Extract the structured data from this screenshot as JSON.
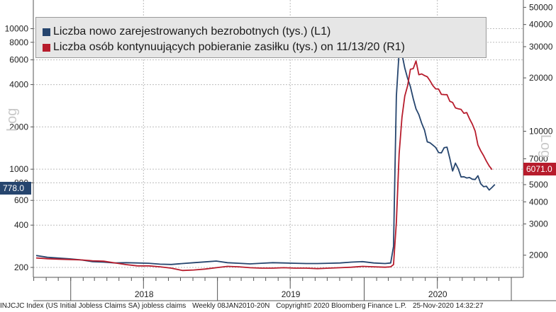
{
  "chart_data": {
    "type": "line",
    "legend_placement": "top-left",
    "grid": true,
    "x_tick_labels": [
      "2018",
      "2019",
      "2020"
    ],
    "left_axis": {
      "title": "Log",
      "scale": "log",
      "ylim": [
        170,
        16000
      ],
      "ticks": [
        200,
        400,
        600,
        800,
        1000,
        2000,
        4000,
        6000,
        8000,
        10000
      ]
    },
    "right_axis": {
      "title": "Log",
      "scale": "log",
      "ylim": [
        1500,
        55000
      ],
      "ticks": [
        2000,
        3000,
        4000,
        5000,
        7000,
        10000,
        20000,
        30000,
        40000,
        50000
      ]
    },
    "series": [
      {
        "name": "Liczba nowo zarejestrowanych bezrobotnych (tys.) (L1)",
        "axis": "left",
        "color": "#26456e",
        "last_value_label": "778.0",
        "points": [
          [
            "2017-10-07",
            243
          ],
          [
            "2017-11-04",
            236
          ],
          [
            "2017-12-02",
            233
          ],
          [
            "2017-12-30",
            230
          ],
          [
            "2018-01-27",
            226
          ],
          [
            "2018-02-24",
            220
          ],
          [
            "2018-03-24",
            218
          ],
          [
            "2018-04-21",
            215
          ],
          [
            "2018-05-19",
            216
          ],
          [
            "2018-06-16",
            215
          ],
          [
            "2018-07-14",
            214
          ],
          [
            "2018-08-11",
            211
          ],
          [
            "2018-09-08",
            210
          ],
          [
            "2018-10-06",
            213
          ],
          [
            "2018-11-03",
            216
          ],
          [
            "2018-12-01",
            219
          ],
          [
            "2018-12-29",
            222
          ],
          [
            "2019-01-26",
            216
          ],
          [
            "2019-02-23",
            214
          ],
          [
            "2019-03-23",
            212
          ],
          [
            "2019-04-20",
            214
          ],
          [
            "2019-05-18",
            216
          ],
          [
            "2019-06-15",
            215
          ],
          [
            "2019-07-13",
            214
          ],
          [
            "2019-08-10",
            213
          ],
          [
            "2019-09-07",
            213
          ],
          [
            "2019-10-05",
            214
          ],
          [
            "2019-11-02",
            215
          ],
          [
            "2019-11-30",
            218
          ],
          [
            "2019-12-28",
            220
          ],
          [
            "2020-01-25",
            215
          ],
          [
            "2020-02-22",
            213
          ],
          [
            "2020-03-07",
            215
          ],
          [
            "2020-03-14",
            282
          ],
          [
            "2020-03-21",
            3307
          ],
          [
            "2020-03-28",
            6867
          ],
          [
            "2020-04-04",
            6615
          ],
          [
            "2020-04-11",
            5237
          ],
          [
            "2020-04-18",
            4442
          ],
          [
            "2020-04-25",
            3867
          ],
          [
            "2020-05-02",
            3176
          ],
          [
            "2020-05-09",
            2687
          ],
          [
            "2020-05-16",
            2446
          ],
          [
            "2020-05-23",
            2123
          ],
          [
            "2020-05-30",
            1897
          ],
          [
            "2020-06-06",
            1566
          ],
          [
            "2020-06-13",
            1540
          ],
          [
            "2020-06-20",
            1482
          ],
          [
            "2020-06-27",
            1427
          ],
          [
            "2020-07-04",
            1314
          ],
          [
            "2020-07-11",
            1307
          ],
          [
            "2020-07-18",
            1422
          ],
          [
            "2020-07-25",
            1435
          ],
          [
            "2020-08-01",
            1191
          ],
          [
            "2020-08-08",
            971
          ],
          [
            "2020-08-15",
            1104
          ],
          [
            "2020-08-22",
            1006
          ],
          [
            "2020-08-29",
            881
          ],
          [
            "2020-09-05",
            884
          ],
          [
            "2020-09-12",
            866
          ],
          [
            "2020-09-19",
            873
          ],
          [
            "2020-09-26",
            849
          ],
          [
            "2020-10-03",
            845
          ],
          [
            "2020-10-10",
            898
          ],
          [
            "2020-10-17",
            787
          ],
          [
            "2020-10-24",
            751
          ],
          [
            "2020-10-31",
            757
          ],
          [
            "2020-11-07",
            711
          ],
          [
            "2020-11-14",
            742
          ],
          [
            "2020-11-21",
            778
          ]
        ]
      },
      {
        "name": "Liczba osób kontynuujących pobieranie zasiłku (tys.) on 11/13/20 (R1)",
        "axis": "right",
        "color": "#b71c2c",
        "last_value_label": "6071.0",
        "points": [
          [
            "2017-10-07",
            1930
          ],
          [
            "2017-11-04",
            1910
          ],
          [
            "2017-12-02",
            1900
          ],
          [
            "2017-12-30",
            1890
          ],
          [
            "2018-01-27",
            1880
          ],
          [
            "2018-02-24",
            1860
          ],
          [
            "2018-03-24",
            1850
          ],
          [
            "2018-04-21",
            1810
          ],
          [
            "2018-05-19",
            1770
          ],
          [
            "2018-06-16",
            1740
          ],
          [
            "2018-07-14",
            1740
          ],
          [
            "2018-08-11",
            1720
          ],
          [
            "2018-09-08",
            1690
          ],
          [
            "2018-10-06",
            1640
          ],
          [
            "2018-11-03",
            1650
          ],
          [
            "2018-12-01",
            1670
          ],
          [
            "2018-12-29",
            1700
          ],
          [
            "2019-01-26",
            1730
          ],
          [
            "2019-02-23",
            1720
          ],
          [
            "2019-03-23",
            1700
          ],
          [
            "2019-04-20",
            1690
          ],
          [
            "2019-05-18",
            1690
          ],
          [
            "2019-06-15",
            1700
          ],
          [
            "2019-07-13",
            1690
          ],
          [
            "2019-08-10",
            1690
          ],
          [
            "2019-09-07",
            1680
          ],
          [
            "2019-10-05",
            1690
          ],
          [
            "2019-11-02",
            1700
          ],
          [
            "2019-11-30",
            1710
          ],
          [
            "2019-12-28",
            1730
          ],
          [
            "2020-01-25",
            1720
          ],
          [
            "2020-02-22",
            1710
          ],
          [
            "2020-03-07",
            1720
          ],
          [
            "2020-03-14",
            1770
          ],
          [
            "2020-03-21",
            3060
          ],
          [
            "2020-03-28",
            7450
          ],
          [
            "2020-04-04",
            11976
          ],
          [
            "2020-04-11",
            15819
          ],
          [
            "2020-04-18",
            18011
          ],
          [
            "2020-04-25",
            22377
          ],
          [
            "2020-05-02",
            22548
          ],
          [
            "2020-05-09",
            24912
          ],
          [
            "2020-05-16",
            20838
          ],
          [
            "2020-05-23",
            21052
          ],
          [
            "2020-05-30",
            20606
          ],
          [
            "2020-06-06",
            20289
          ],
          [
            "2020-06-13",
            19231
          ],
          [
            "2020-06-20",
            18062
          ],
          [
            "2020-06-27",
            17338
          ],
          [
            "2020-07-04",
            17304
          ],
          [
            "2020-07-11",
            16151
          ],
          [
            "2020-07-18",
            16107
          ],
          [
            "2020-07-25",
            16091
          ],
          [
            "2020-08-01",
            14759
          ],
          [
            "2020-08-08",
            14535
          ],
          [
            "2020-08-15",
            13544
          ],
          [
            "2020-08-22",
            13385
          ],
          [
            "2020-08-29",
            13292
          ],
          [
            "2020-09-05",
            12628
          ],
          [
            "2020-09-12",
            12747
          ],
          [
            "2020-09-19",
            11767
          ],
          [
            "2020-09-26",
            10976
          ],
          [
            "2020-10-03",
            10018
          ],
          [
            "2020-10-10",
            8373
          ],
          [
            "2020-10-17",
            7756
          ],
          [
            "2020-10-24",
            7285
          ],
          [
            "2020-10-31",
            6786
          ],
          [
            "2020-11-07",
            6372
          ],
          [
            "2020-11-14",
            6071
          ]
        ]
      }
    ]
  },
  "footer": {
    "ticker": "INJCJC Index (US Initial Jobless Claims SA) jobless claims",
    "frequency": "Weekly 08JAN2010-20N",
    "copyright": "Copyright© 2020 Bloomberg Finance L.P.",
    "timestamp": "25-Nov-2020 14:32:27"
  }
}
